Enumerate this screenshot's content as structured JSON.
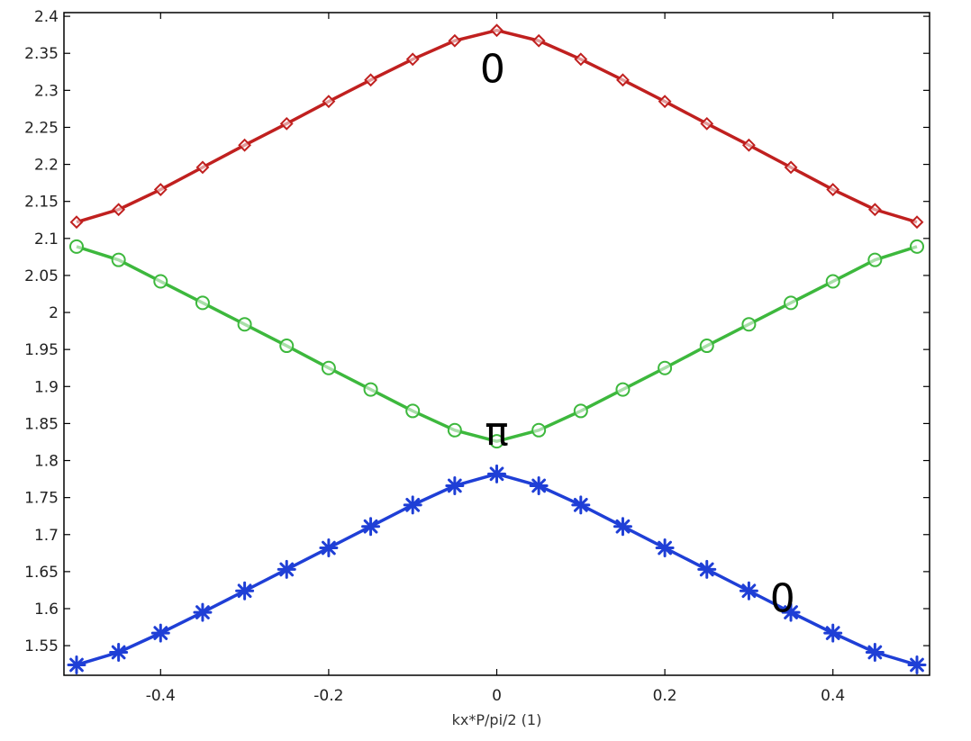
{
  "chart_data": {
    "type": "line",
    "title": "",
    "xlabel": "kx*P/pi/2 (1)",
    "ylabel": "",
    "xlim": [
      -0.515,
      0.515
    ],
    "ylim": [
      1.51,
      2.405
    ],
    "grid": false,
    "xticks": [
      -0.4,
      -0.2,
      0,
      0.2,
      0.4
    ],
    "xtick_labels": [
      "-0.4",
      "-0.2",
      "0",
      "0.2",
      "0.4"
    ],
    "yticks": [
      1.55,
      1.6,
      1.65,
      1.7,
      1.75,
      1.8,
      1.85,
      1.9,
      1.95,
      2,
      2.05,
      2.1,
      2.15,
      2.2,
      2.25,
      2.3,
      2.35,
      2.4
    ],
    "ytick_labels": [
      "1.55",
      "1.6",
      "1.65",
      "1.7",
      "1.75",
      "1.8",
      "1.85",
      "1.9",
      "1.95",
      "2",
      "2.05",
      "2.1",
      "2.15",
      "2.2",
      "2.25",
      "2.3",
      "2.35",
      "2.4"
    ],
    "x": [
      -0.5,
      -0.45,
      -0.4,
      -0.35,
      -0.3,
      -0.25,
      -0.2,
      -0.15,
      -0.1,
      -0.05,
      0,
      0.05,
      0.1,
      0.15,
      0.2,
      0.25,
      0.3,
      0.35,
      0.4,
      0.45,
      0.5
    ],
    "series": [
      {
        "color": "#c0201f",
        "marker": "diamond",
        "values": [
          2.122,
          2.139,
          2.166,
          2.196,
          2.226,
          2.255,
          2.285,
          2.314,
          2.342,
          2.367,
          2.381,
          2.367,
          2.342,
          2.314,
          2.285,
          2.255,
          2.226,
          2.196,
          2.166,
          2.139,
          2.122
        ]
      },
      {
        "color": "#3db83d",
        "marker": "circle",
        "values": [
          2.089,
          2.071,
          2.042,
          2.013,
          1.984,
          1.955,
          1.925,
          1.896,
          1.867,
          1.841,
          1.826,
          1.841,
          1.867,
          1.896,
          1.925,
          1.955,
          1.984,
          2.013,
          2.042,
          2.071,
          2.089
        ]
      },
      {
        "color": "#1f3fd6",
        "marker": "star",
        "values": [
          1.524,
          1.541,
          1.567,
          1.595,
          1.624,
          1.653,
          1.682,
          1.711,
          1.74,
          1.766,
          1.782,
          1.766,
          1.74,
          1.711,
          1.682,
          1.653,
          1.624,
          1.595,
          1.567,
          1.541,
          1.524
        ]
      }
    ],
    "annotations": [
      {
        "text": "0",
        "x": -0.005,
        "y": 2.33
      },
      {
        "text": "π",
        "x": 0.0,
        "y": 1.84
      },
      {
        "text": "0",
        "x": 0.34,
        "y": 1.615
      }
    ]
  }
}
